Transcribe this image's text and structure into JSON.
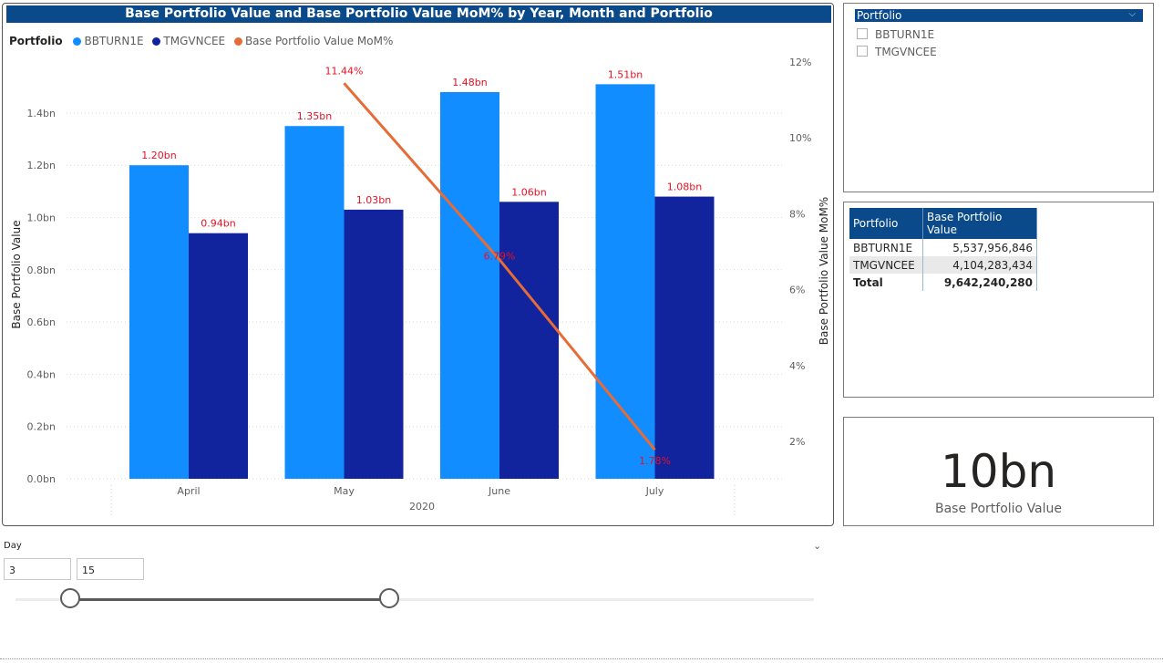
{
  "chart": {
    "title": "Base Portfolio Value and Base Portfolio Value MoM% by Year, Month and Portfolio",
    "legend_title": "Portfolio",
    "legend": [
      {
        "label": "BBTURN1E",
        "color": "#118dff"
      },
      {
        "label": "TMGVNCEE",
        "color": "#12239e"
      },
      {
        "label": "Base Portfolio Value MoM%",
        "color": "#e66c37"
      }
    ]
  },
  "chart_data": {
    "type": "bar",
    "categories": [
      "April",
      "May",
      "June",
      "July"
    ],
    "x_group_label": "2020",
    "ylabel": "Base Portfolio Value",
    "y2label": "Base Portfolio Value MoM%",
    "ylim": [
      0,
      1.4
    ],
    "y_ticks": [
      "0.0bn",
      "0.2bn",
      "0.4bn",
      "0.6bn",
      "0.8bn",
      "1.0bn",
      "1.2bn",
      "1.4bn"
    ],
    "y2_ticks": [
      "2%",
      "4%",
      "6%",
      "8%",
      "10%",
      "12%"
    ],
    "y2_tick_values": [
      2,
      4,
      6,
      8,
      10,
      12
    ],
    "grid": true,
    "series": [
      {
        "name": "BBTURN1E",
        "type": "bar",
        "color": "#118dff",
        "values": [
          1.2,
          1.35,
          1.48,
          1.51
        ],
        "labels": [
          "1.20bn",
          "1.35bn",
          "1.48bn",
          "1.51bn"
        ]
      },
      {
        "name": "TMGVNCEE",
        "type": "bar",
        "color": "#12239e",
        "values": [
          0.94,
          1.03,
          1.06,
          1.08
        ],
        "labels": [
          "0.94bn",
          "1.03bn",
          "1.06bn",
          "1.08bn"
        ]
      },
      {
        "name": "Base Portfolio Value MoM%",
        "type": "line",
        "axis": "right",
        "color": "#e66c37",
        "values": [
          null,
          11.44,
          6.79,
          1.78
        ],
        "labels": [
          "",
          "11.44%",
          "6.79%",
          "1.78%"
        ]
      }
    ]
  },
  "slicer": {
    "title": "Portfolio",
    "items": [
      "BBTURN1E",
      "TMGVNCEE"
    ]
  },
  "table": {
    "headers": [
      "Portfolio",
      "Base Portfolio Value"
    ],
    "rows": [
      [
        "BBTURN1E",
        "5,537,956,846"
      ],
      [
        "TMGVNCEE",
        "4,104,283,434"
      ]
    ],
    "total": [
      "Total",
      "9,642,240,280"
    ]
  },
  "kpi": {
    "value": "10bn",
    "label": "Base Portfolio Value"
  },
  "day_slicer": {
    "label": "Day",
    "min": "3",
    "max": "15"
  }
}
